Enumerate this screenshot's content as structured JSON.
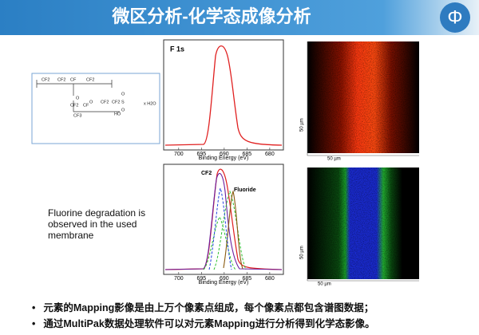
{
  "header": {
    "title": "微区分析-化学态成像分析",
    "logo": "Φ"
  },
  "structure": {
    "labels": [
      "CF2",
      "CF2",
      "CF",
      "CF2",
      "O",
      "CF2",
      "CF",
      "CF3",
      "O",
      "CF2",
      "CF2",
      "S",
      "O",
      "O",
      "HO",
      "x H2O"
    ]
  },
  "spectra": [
    {
      "label": "F 1s",
      "xlim": [
        703.3,
        677
      ],
      "xticks": [
        700,
        695,
        690,
        685,
        680
      ],
      "xlabel": "Binding Energy (eV)"
    },
    {
      "labels": [
        "CF2",
        "Fluoride"
      ],
      "xlim": [
        703.3,
        677
      ],
      "xticks": [
        700,
        695,
        690,
        685,
        680
      ],
      "xlabel": "Binding Energy (eV)"
    }
  ],
  "maps": [
    {
      "scale_x": "50 µm",
      "scale_y": "50 µm"
    },
    {
      "scale_x": "50 µm",
      "scale_y": "50 µm"
    }
  ],
  "note": "Fluorine degradation is observed in the used membrane",
  "bullets": [
    "元素的Mapping影像是由上万个像素点组成，每个像素点都包含谱图数据；",
    "通过MultiPak数据处理软件可以对元素Mapping进行分析得到化学态影像。"
  ]
}
